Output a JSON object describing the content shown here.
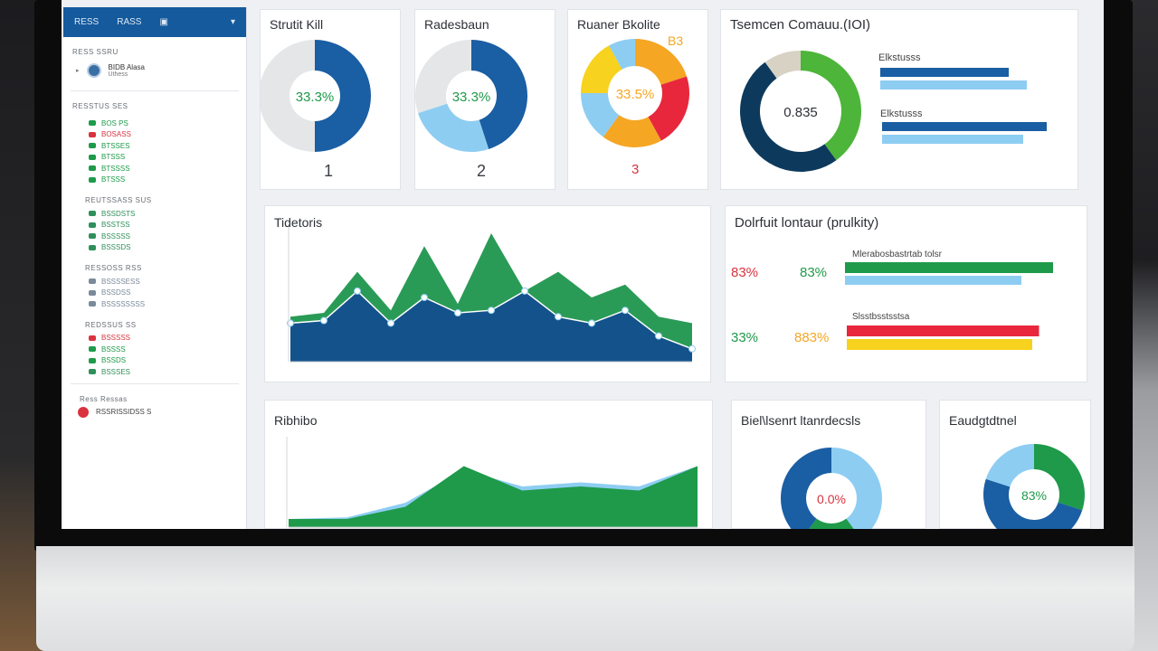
{
  "sidebar": {
    "top_items": [
      "RESS",
      "RASS"
    ],
    "section1": "RESS SSRU",
    "profile_name": "BIDB Alasa",
    "profile_sub": "Uthess",
    "section2": "RESSTUS SES",
    "group1": [
      {
        "label": "BOS PS",
        "color": "#1e9a4a"
      },
      {
        "label": "BOSASS",
        "color": "#d9333f"
      },
      {
        "label": "BTSSES",
        "color": "#1e9a4a"
      },
      {
        "label": "BTSSS",
        "color": "#1e9a4a"
      },
      {
        "label": "BTSSSS",
        "color": "#1e9a4a"
      },
      {
        "label": "BTSSS",
        "color": "#1e9a4a"
      }
    ],
    "section3": "REUTSSASS SUS",
    "group2": [
      {
        "label": "BSSDSTS",
        "color": "#2f8f5a"
      },
      {
        "label": "BSSTSS",
        "color": "#2f8f5a"
      },
      {
        "label": "BSSSSS",
        "color": "#2f8f5a"
      },
      {
        "label": "BSSSDS",
        "color": "#2f8f5a"
      }
    ],
    "section4": "RESSOSS RSS",
    "group3": [
      {
        "label": "BSSSSESS",
        "color": "#7a8a9a"
      },
      {
        "label": "BSSDSS",
        "color": "#7a8a9a"
      },
      {
        "label": "BSSSSSSSS",
        "color": "#7a8a9a"
      }
    ],
    "section5": "REDSSUS SS",
    "group4": [
      {
        "label": "BSSSSS",
        "color": "#d9333f"
      },
      {
        "label": "BSSSS",
        "color": "#1e9a4a"
      },
      {
        "label": "BSSDS",
        "color": "#1e9a4a"
      },
      {
        "label": "BSSSES",
        "color": "#2f8f5a"
      }
    ],
    "footer_section": "Ress Ressas",
    "footer_item": "RSSRISSIDSS S"
  },
  "cards": {
    "c1_title": "Strutit Kill",
    "c1_value": "33.3%",
    "c1_number": "1",
    "c2_title": "Radesbaun",
    "c2_value": "33.3%",
    "c2_number": "2",
    "c3_title": "Ruaner Bkolite",
    "c3_value": "33.5%",
    "c3_tag": "B3",
    "c3_number": "3",
    "c4_title": "Tsemcen Comauu.(IOI)",
    "c4_value": "0.835",
    "c4_bar_label1": "Elkstusss",
    "c4_bar_label2": "Elkstusss",
    "c5_title": "Tidetoris",
    "c6_title": "Dolrfuit lontaur (prulkity)",
    "c6_row1_red": "83%",
    "c6_row1_green": "83%",
    "c6_row1_label": "Mlerabosbastrtab tolsr",
    "c6_row2_green": "33%",
    "c6_row2_orange": "883%",
    "c6_row2_label": "Slsstbsstsstsa",
    "c7_title": "Ribhibo",
    "c8_title": "Biel\\lsenrt ltanrdecsls",
    "c8_value": "0.0%",
    "c9_title": "Eaudgtdtnel",
    "c9_value": "83%"
  },
  "chart_data": [
    {
      "type": "pie",
      "slices": [
        {
          "value": 50,
          "color": "#1a5ea3"
        },
        {
          "value": 50,
          "color": "#e5e6e8"
        }
      ],
      "center_label": "33.3%"
    },
    {
      "type": "pie",
      "slices": [
        {
          "value": 45,
          "color": "#1a5ea3"
        },
        {
          "value": 25,
          "color": "#8ecdf2"
        },
        {
          "value": 30,
          "color": "#e5e6e8"
        }
      ],
      "center_label": "33.3%"
    },
    {
      "type": "pie",
      "slices": [
        {
          "value": 20,
          "color": "#f5a623"
        },
        {
          "value": 22,
          "color": "#e8273d"
        },
        {
          "value": 18,
          "color": "#f5a623"
        },
        {
          "value": 15,
          "color": "#8ecdf2"
        },
        {
          "value": 17,
          "color": "#f7d21e"
        },
        {
          "value": 8,
          "color": "#8ecdf2"
        }
      ],
      "center_label": "33.5%"
    },
    {
      "type": "pie",
      "slices": [
        {
          "value": 40,
          "color": "#4db53a"
        },
        {
          "value": 50,
          "color": "#0d3a5c"
        },
        {
          "value": 10,
          "color": "#d8d2c4"
        }
      ],
      "center_label": "0.835"
    },
    {
      "type": "area",
      "x": [
        "",
        "",
        "",
        "",
        "",
        "",
        "",
        "",
        "",
        "",
        "",
        "",
        ""
      ],
      "series": [
        {
          "values": [
            35,
            38,
            70,
            40,
            90,
            45,
            100,
            55,
            70,
            50,
            60,
            35,
            30
          ],
          "color": "#2a9b56"
        },
        {
          "values": [
            30,
            32,
            55,
            30,
            50,
            38,
            40,
            55,
            35,
            30,
            40,
            20,
            10
          ],
          "color": "#14528c"
        }
      ]
    },
    {
      "type": "bar",
      "orientation": "horizontal",
      "series": [
        {
          "values": [
            92
          ],
          "color": "#1e9a4a"
        },
        {
          "values": [
            78
          ],
          "color": "#8ecdf2"
        },
        {
          "values": [
            85
          ],
          "color": "#e8273d"
        },
        {
          "values": [
            82
          ],
          "color": "#f7d21e"
        }
      ]
    },
    {
      "type": "area",
      "x": [
        "",
        "",
        "",
        "",
        "",
        "",
        "",
        ""
      ],
      "series": [
        {
          "values": [
            10,
            12,
            30,
            70,
            50,
            55,
            50,
            75
          ],
          "color": "#8ecdf2"
        },
        {
          "values": [
            10,
            10,
            25,
            75,
            45,
            50,
            45,
            75
          ],
          "color": "#1e9a4a"
        }
      ]
    },
    {
      "type": "pie",
      "slices": [
        {
          "value": 40,
          "color": "#8ecdf2"
        },
        {
          "value": 20,
          "color": "#1e9a4a"
        },
        {
          "value": 40,
          "color": "#1a5ea3"
        }
      ],
      "center_label": "0.0%"
    },
    {
      "type": "pie",
      "slices": [
        {
          "value": 30,
          "color": "#1e9a4a"
        },
        {
          "value": 50,
          "color": "#1a5ea3"
        },
        {
          "value": 20,
          "color": "#8ecdf2"
        }
      ],
      "center_label": "83%"
    }
  ]
}
